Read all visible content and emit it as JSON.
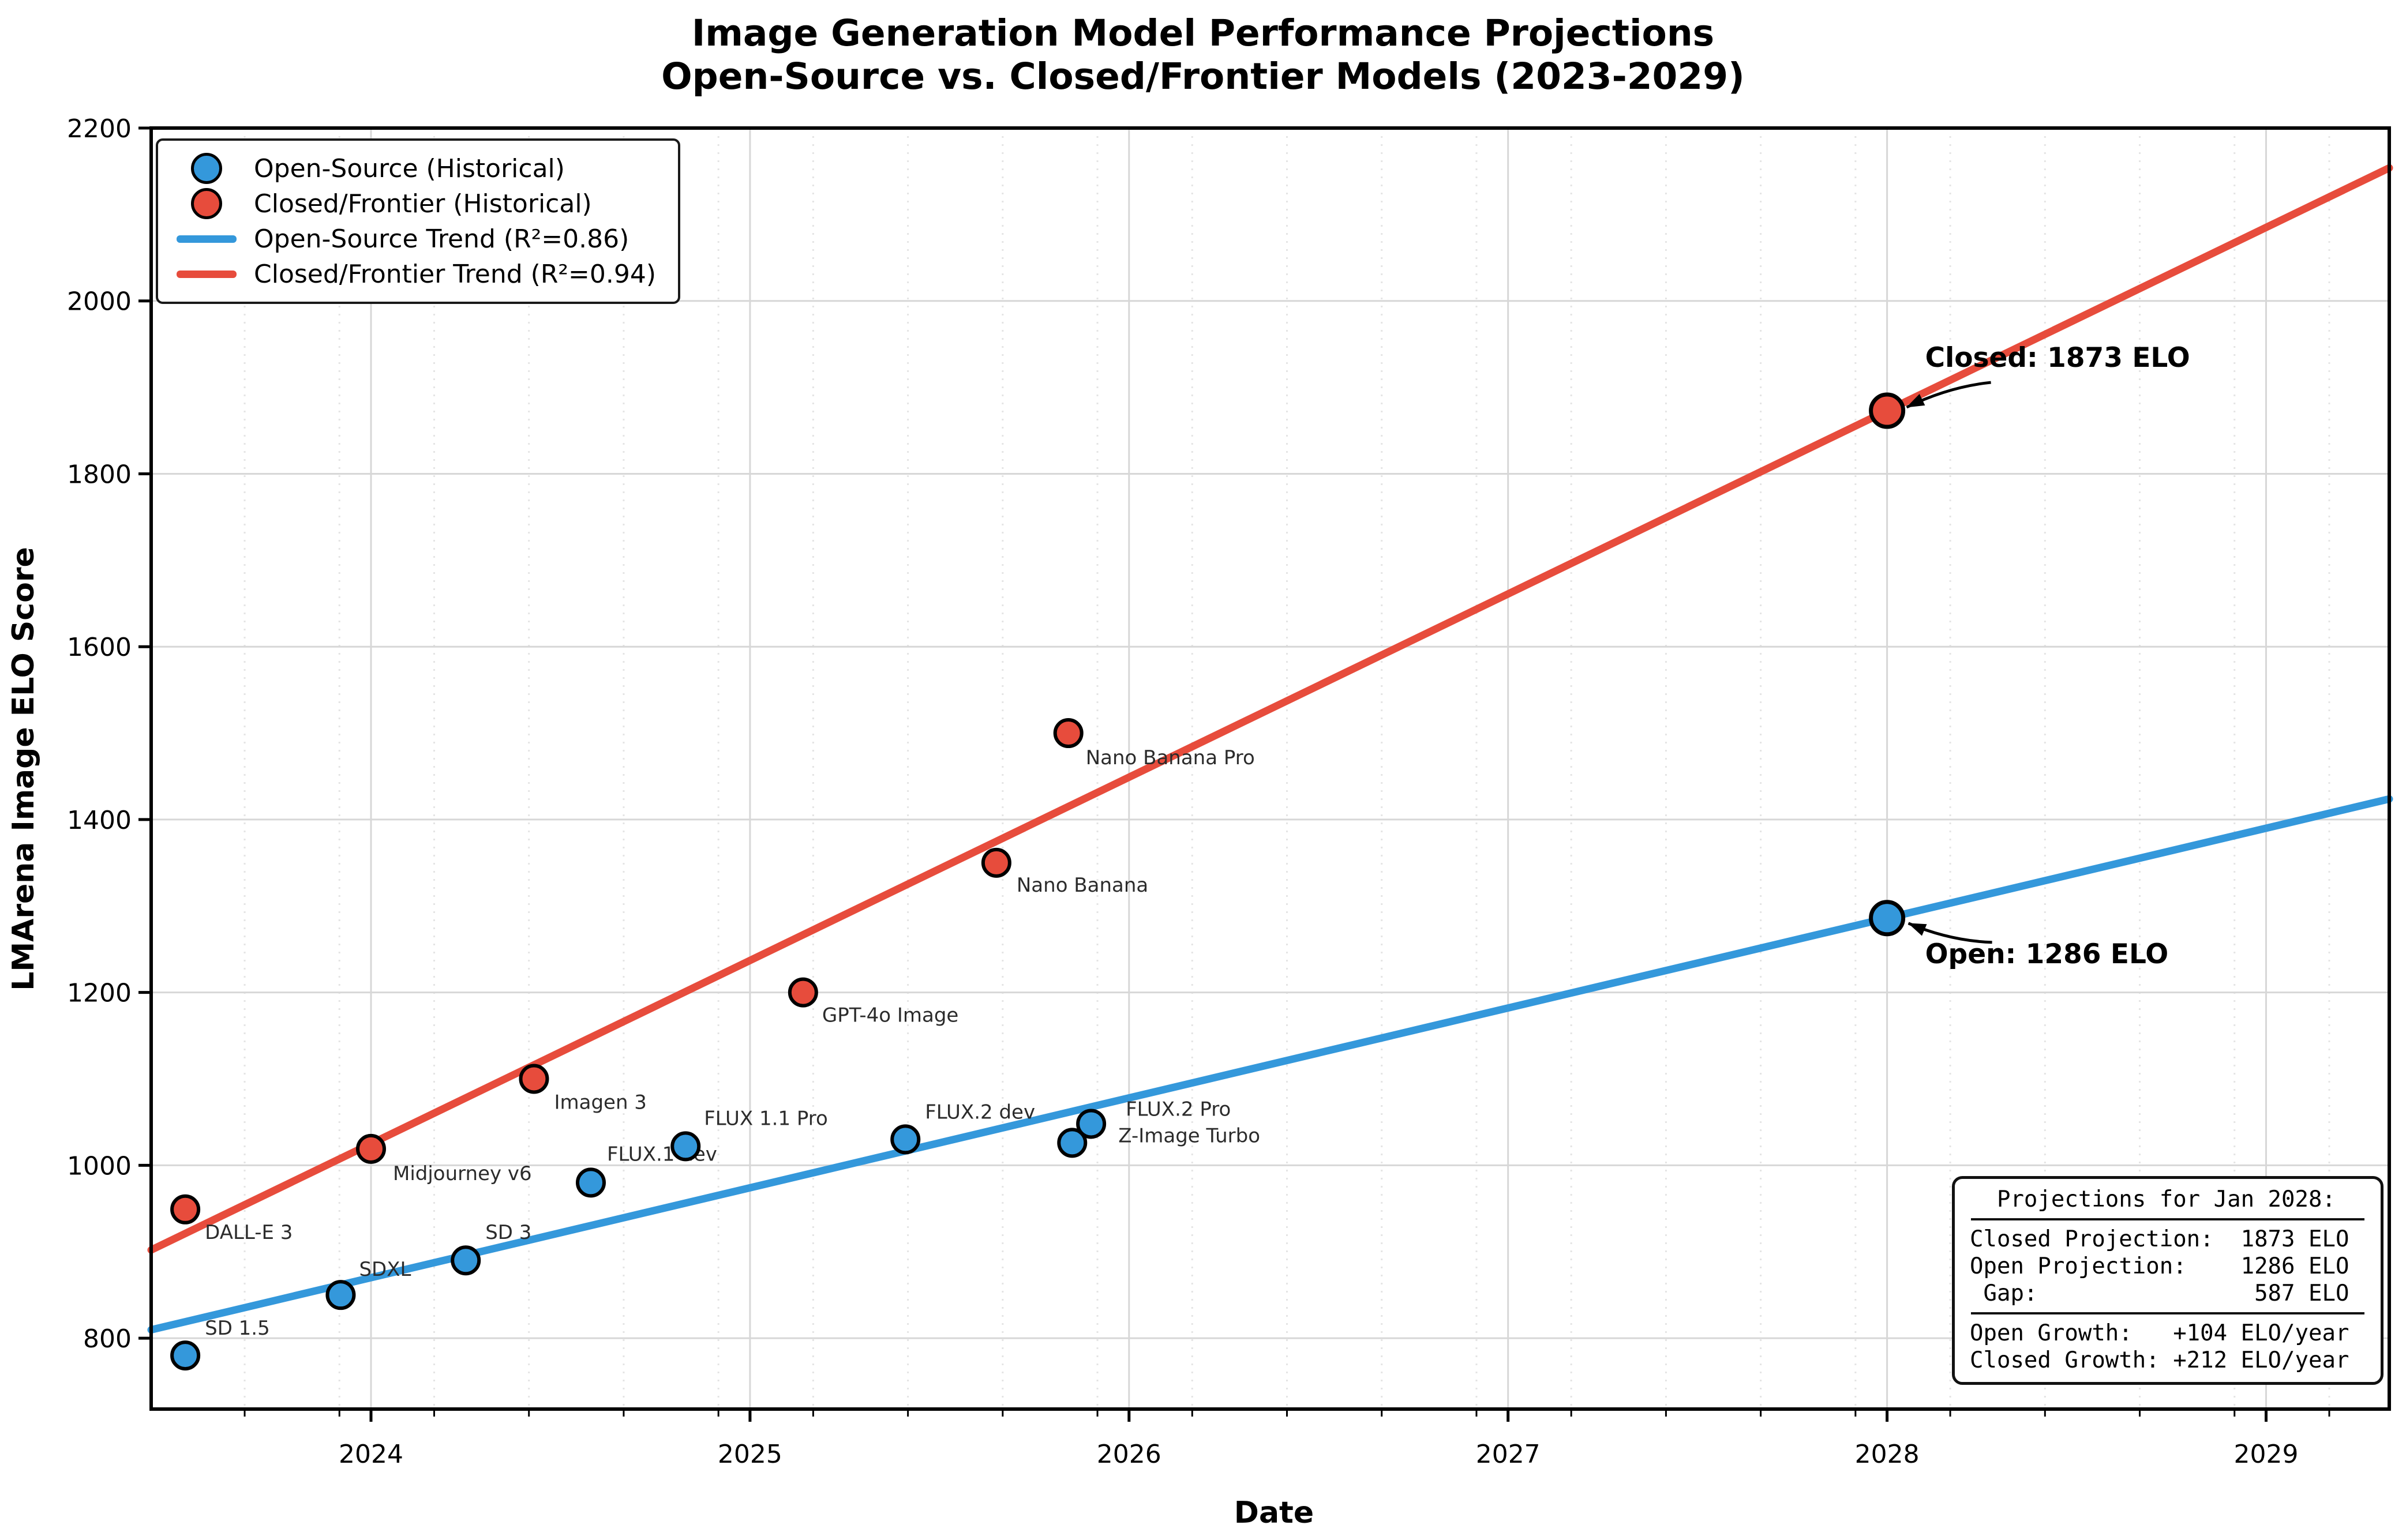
{
  "title": {
    "line1": "Image Generation Model Performance Projections",
    "line2": "Open-Source vs. Closed/Frontier Models (2023-2029)"
  },
  "axes": {
    "x_label": "Date",
    "y_label": "LMArena Image ELO Score",
    "x_tick_labels": [
      "2024",
      "2025",
      "2026",
      "2027",
      "2028",
      "2029"
    ],
    "y_tick_labels": [
      "800",
      "1000",
      "1200",
      "1400",
      "1600",
      "1800",
      "2000",
      "2200"
    ]
  },
  "legend": {
    "items": [
      {
        "label": "Open-Source (Historical)",
        "swatch": "circle",
        "color": "#3498db"
      },
      {
        "label": "Closed/Frontier (Historical)",
        "swatch": "circle",
        "color": "#e74c3c"
      },
      {
        "label": "Open-Source Trend (R²=0.86)",
        "swatch": "line",
        "color": "#3498db"
      },
      {
        "label": "Closed/Frontier Trend (R²=0.94)",
        "swatch": "line",
        "color": "#e74c3c"
      }
    ]
  },
  "chart_data": {
    "type": "scatter",
    "x_range": [
      2023.42,
      2029.325
    ],
    "y_range": [
      718,
      2200
    ],
    "x_ticks": [
      2024,
      2025,
      2026,
      2027,
      2028,
      2029
    ],
    "y_ticks": [
      800,
      1000,
      1200,
      1400,
      1600,
      1800,
      2000,
      2200
    ],
    "minor_x_months": [
      3,
      6,
      9,
      12
    ],
    "grid": {
      "major": true,
      "minor_vertical_dotted": true
    },
    "series": [
      {
        "name": "Open-Source (Historical)",
        "color": "#3498db",
        "points": [
          {
            "label": "SD 1.5",
            "x": 2023.51,
            "y": 780,
            "label_offset": [
              34,
              -48
            ]
          },
          {
            "label": "SDXL",
            "x": 2023.92,
            "y": 850,
            "label_offset": [
              32,
              -45
            ]
          },
          {
            "label": "SD 3",
            "x": 2024.25,
            "y": 890,
            "label_offset": [
              34,
              -49
            ]
          },
          {
            "label": "FLUX.1 dev",
            "x": 2024.58,
            "y": 980,
            "label_offset": [
              28,
              -50
            ]
          },
          {
            "label": "FLUX 1.1 Pro",
            "x": 2024.83,
            "y": 1022,
            "label_offset": [
              32,
              -49
            ]
          },
          {
            "label": "FLUX.2 dev",
            "x": 2025.41,
            "y": 1030,
            "label_offset": [
              34,
              -48
            ]
          },
          {
            "label": "Z-Image Turbo",
            "x": 2025.85,
            "y": 1026,
            "label_offset": [
              80,
              -13
            ]
          },
          {
            "label": "FLUX.2 Pro",
            "x": 2025.9,
            "y": 1048,
            "label_offset": [
              60,
              -26
            ]
          }
        ]
      },
      {
        "name": "Closed/Frontier (Historical)",
        "color": "#e74c3c",
        "points": [
          {
            "label": "DALL-E 3",
            "x": 2023.51,
            "y": 949,
            "label_offset": [
              34,
              39
            ]
          },
          {
            "label": "Midjourney v6",
            "x": 2024.0,
            "y": 1019,
            "label_offset": [
              38,
              42
            ]
          },
          {
            "label": "Imagen 3",
            "x": 2024.43,
            "y": 1100,
            "label_offset": [
              35,
              40
            ]
          },
          {
            "label": "GPT-4o Image",
            "x": 2025.14,
            "y": 1200,
            "label_offset": [
              33,
              39
            ]
          },
          {
            "label": "Nano Banana",
            "x": 2025.65,
            "y": 1350,
            "label_offset": [
              35,
              38
            ]
          },
          {
            "label": "Nano Banana Pro",
            "x": 2025.84,
            "y": 1500,
            "label_offset": [
              30,
              42
            ]
          }
        ]
      }
    ],
    "trend_lines": [
      {
        "name": "Open-Source Trend (R²=0.86)",
        "color": "#3498db",
        "r2": 0.86,
        "slope_elo_per_year": 104,
        "anchor": {
          "x": 2028,
          "y": 1286
        }
      },
      {
        "name": "Closed/Frontier Trend (R²=0.94)",
        "color": "#e74c3c",
        "r2": 0.94,
        "slope_elo_per_year": 212,
        "anchor": {
          "x": 2028,
          "y": 1873
        }
      }
    ],
    "projections": [
      {
        "series": "Closed/Frontier",
        "label": "Closed: 1873 ELO",
        "x": 2028,
        "y": 1873,
        "color": "#e74c3c",
        "text_offset": [
          66,
          -92
        ],
        "arrow_tail_offset": [
          180,
          -49
        ],
        "arrow_tip_offset": [
          34,
          -6
        ],
        "bow": -14
      },
      {
        "series": "Open-Source",
        "label": "Open: 1286 ELO",
        "x": 2028,
        "y": 1286,
        "color": "#3498db",
        "text_offset": [
          66,
          62
        ],
        "arrow_tail_offset": [
          182,
          42
        ],
        "arrow_tip_offset": [
          37,
          9
        ],
        "bow": 14
      }
    ]
  },
  "stats_box": {
    "lines": [
      "  Projections for Jan 2028:",
      "Closed Projection:  1873 ELO",
      "Open Projection:    1286 ELO",
      " Gap:                587 ELO",
      "Open Growth:   +104 ELO/year",
      "Closed Growth: +212 ELO/year"
    ]
  }
}
